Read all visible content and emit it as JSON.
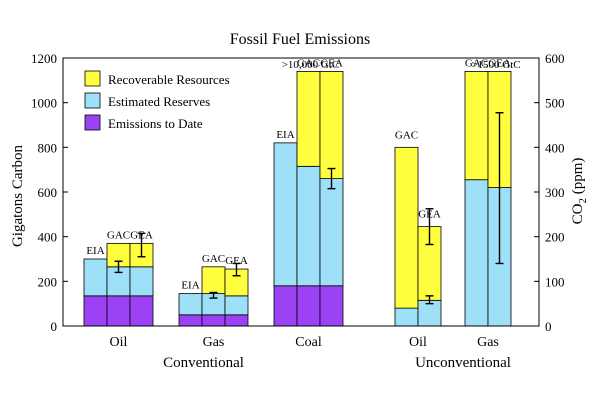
{
  "chart_data": {
    "type": "bar",
    "title": "Fossil Fuel Emissions",
    "ylabel_left": "Gigatons Carbon",
    "ylabel_right": "CO",
    "ylabel_right_sub": "2",
    "ylabel_right_units": " (ppm)",
    "ylim_left": [
      0,
      1200
    ],
    "ylim_right": [
      0,
      600
    ],
    "yticks_left": [
      "0",
      "200",
      "400",
      "600",
      "800",
      "1000",
      "1200"
    ],
    "yticks_right": [
      "0",
      "100",
      "200",
      "300",
      "400",
      "500",
      "600"
    ],
    "legend": {
      "placement": "top-left",
      "entries": [
        {
          "label": "Recoverable Resources",
          "color": "#ffff40"
        },
        {
          "label": "Estimated Reserves",
          "color": "#9ee0f7"
        },
        {
          "label": "Emissions to Date",
          "color": "#9b42f5"
        }
      ]
    },
    "categories": [
      "Oil",
      "Gas",
      "Coal",
      "Oil",
      "Gas"
    ],
    "groups": [
      {
        "label": "Conventional",
        "categories": [
          0,
          1,
          2
        ]
      },
      {
        "label": "Unconventional",
        "categories": [
          3,
          4
        ]
      }
    ],
    "bars": [
      {
        "category": 0,
        "source": "EIA",
        "emissions": 135,
        "reserves": 300,
        "resources": null,
        "error": null
      },
      {
        "category": 0,
        "source": "GAC",
        "emissions": 135,
        "reserves": 265,
        "resources": 370,
        "error": [
          240,
          290
        ]
      },
      {
        "category": 0,
        "source": "GEA",
        "emissions": 135,
        "reserves": 265,
        "resources": 370,
        "error": [
          310,
          415
        ]
      },
      {
        "category": 1,
        "source": "EIA",
        "emissions": 50,
        "reserves": 145,
        "resources": null,
        "error": null
      },
      {
        "category": 1,
        "source": "GAC",
        "emissions": 50,
        "reserves": 145,
        "resources": 265,
        "error": [
          125,
          150
        ]
      },
      {
        "category": 1,
        "source": "GEA",
        "emissions": 50,
        "reserves": 135,
        "resources": 255,
        "error": [
          225,
          280
        ]
      },
      {
        "category": 2,
        "source": "EIA",
        "emissions": 180,
        "reserves": 820,
        "resources": null,
        "error": null
      },
      {
        "category": 2,
        "source": "GAC",
        "emissions": 180,
        "reserves": 715,
        "resources": 1140,
        "error": null
      },
      {
        "category": 2,
        "source": "GEA",
        "emissions": 180,
        "reserves": 660,
        "resources": 1140,
        "error": [
          615,
          705
        ]
      },
      {
        "category": 3,
        "source": "GAC",
        "emissions": 0,
        "reserves": 80,
        "resources": 800,
        "error": null
      },
      {
        "category": 3,
        "source": "GEA",
        "emissions": 0,
        "reserves": 115,
        "resources": 445,
        "error": [
          100,
          135
        ]
      },
      {
        "category": 3,
        "source": "GEA",
        "emissions": 0,
        "reserves": 115,
        "resources": 445,
        "error": [
          365,
          525
        ]
      },
      {
        "category": 4,
        "source": "GAC",
        "emissions": 0,
        "reserves": 655,
        "resources": 1140,
        "error": null
      },
      {
        "category": 4,
        "source": "GEA",
        "emissions": 0,
        "reserves": 620,
        "resources": 1140,
        "error": [
          280,
          955
        ]
      }
    ],
    "annotations": [
      ">10,000 GtC",
      ">1500 GtC"
    ],
    "grid": false
  }
}
